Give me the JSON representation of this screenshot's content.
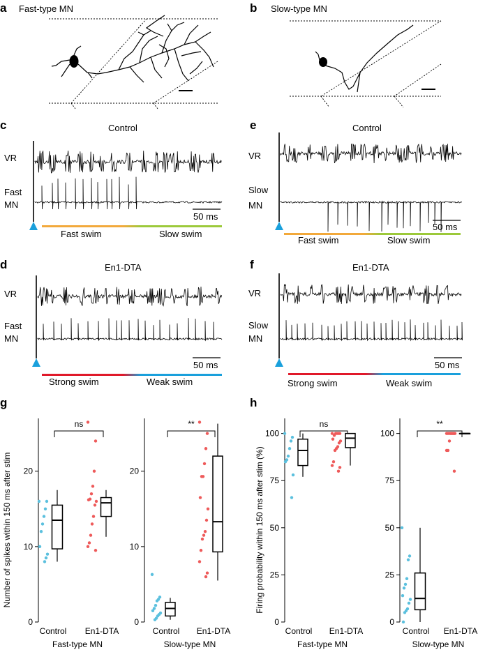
{
  "panels": {
    "a": {
      "letter": "a",
      "title": "Fast-type MN"
    },
    "b": {
      "letter": "b",
      "title": "Slow-type MN"
    },
    "c": {
      "letter": "c",
      "title": "Control",
      "vr": "VR",
      "mn1": "Fast",
      "mn2": "MN",
      "scale": "50 ms",
      "swim1": "Fast swim",
      "swim2": "Slow swim",
      "bar_colors": [
        "#f2a93b",
        "#9cc93a"
      ]
    },
    "e": {
      "letter": "e",
      "title": "Control",
      "vr": "VR",
      "mn1": "Slow",
      "mn2": "MN",
      "scale": "50 ms",
      "swim1": "Fast swim",
      "swim2": "Slow swim",
      "bar_colors": [
        "#f2a93b",
        "#9cc93a"
      ]
    },
    "d": {
      "letter": "d",
      "title": "En1-DTA",
      "vr": "VR",
      "mn1": "Fast",
      "mn2": "MN",
      "scale": "50 ms",
      "swim1": "Strong swim",
      "swim2": "Weak swim",
      "bar_colors": [
        "#e0192a",
        "#1aa0dc"
      ]
    },
    "f": {
      "letter": "f",
      "title": "En1-DTA",
      "vr": "VR",
      "mn1": "Slow",
      "mn2": "MN",
      "scale": "50 ms",
      "swim1": "Strong swim",
      "swim2": "Weak swim",
      "bar_colors": [
        "#e0192a",
        "#1aa0dc"
      ]
    },
    "g": {
      "letter": "g"
    },
    "h": {
      "letter": "h"
    }
  },
  "colors": {
    "control": "#5bc0de",
    "en1dta": "#ee5a5a",
    "stim": "#1aa0dc"
  },
  "chart_data": [
    {
      "id": "g-fast",
      "type": "box",
      "panel": "g",
      "ylabel": "Number of spikes within 150 ms after stim",
      "xlabel": "Fast-type MN",
      "categories": [
        "Control",
        "En1-DTA"
      ],
      "ylim": [
        0,
        27
      ],
      "yticks": [
        0,
        10,
        20
      ],
      "significance": "ns",
      "series": [
        {
          "name": "Control",
          "points": [
            16,
            16,
            15,
            14,
            13,
            12,
            10,
            9,
            8.5,
            8
          ],
          "box": {
            "min": 8,
            "q1": 9.7,
            "median": 13.5,
            "q3": 15.5,
            "max": 17.5
          }
        },
        {
          "name": "En1-DTA",
          "points": [
            26.5,
            24,
            20,
            18,
            17,
            16.3,
            16.2,
            16,
            15.5,
            14,
            13,
            11.5,
            10.5,
            10,
            9.5
          ],
          "box": {
            "min": 11.3,
            "q1": 14,
            "median": 15.8,
            "q3": 16.5,
            "max": 17.5
          }
        }
      ]
    },
    {
      "id": "g-slow",
      "type": "box",
      "panel": "g",
      "ylabel": "",
      "xlabel": "Slow-type MN",
      "categories": [
        "Control",
        "En1-DTA"
      ],
      "ylim": [
        0,
        27
      ],
      "yticks": [
        0,
        10,
        20
      ],
      "significance": "**",
      "series": [
        {
          "name": "Control",
          "points": [
            6.3,
            3.3,
            3,
            2.8,
            2.2,
            1.8,
            1.5,
            1.2,
            1,
            0.8,
            0.5,
            0.3
          ],
          "box": {
            "min": 0.3,
            "q1": 0.8,
            "median": 1.8,
            "q3": 2.6,
            "max": 3.2
          }
        },
        {
          "name": "En1-DTA",
          "points": [
            26.5,
            25,
            23,
            21,
            19.3,
            19.3,
            16.5,
            15,
            13.5,
            12,
            11.5,
            11,
            9.5,
            8,
            6.5,
            6
          ],
          "box": {
            "min": 5.5,
            "q1": 9.3,
            "median": 13.3,
            "q3": 22,
            "max": 26.3
          }
        }
      ]
    },
    {
      "id": "h-fast",
      "type": "box",
      "panel": "h",
      "ylabel": "Firing probability within 150 ms after stim (%)",
      "xlabel": "Fast-type MN",
      "categories": [
        "Control",
        "En1-DTA"
      ],
      "ylim": [
        0,
        108
      ],
      "yticks": [
        0,
        25,
        50,
        75,
        100
      ],
      "significance": "ns",
      "series": [
        {
          "name": "Control",
          "points": [
            100,
            98,
            96,
            92,
            88,
            86,
            85,
            78,
            66
          ],
          "box": {
            "min": 77,
            "q1": 83,
            "median": 91,
            "q3": 97,
            "max": 100
          }
        },
        {
          "name": "En1-DTA",
          "points": [
            100,
            100,
            100,
            100,
            100,
            99,
            97,
            96,
            95,
            93,
            92,
            91,
            85,
            83,
            82,
            80
          ],
          "box": {
            "min": 83,
            "q1": 92.5,
            "median": 97.5,
            "q3": 100,
            "max": 100
          }
        }
      ]
    },
    {
      "id": "h-slow",
      "type": "box",
      "panel": "h",
      "ylabel": "",
      "xlabel": "Slow-type MN",
      "categories": [
        "Control",
        "En1-DTA"
      ],
      "ylim": [
        0,
        108
      ],
      "yticks": [
        0,
        25,
        50,
        75,
        100
      ],
      "significance": "**",
      "series": [
        {
          "name": "Control",
          "points": [
            50,
            35,
            33,
            23,
            20,
            18,
            14,
            12,
            10,
            7,
            6,
            5,
            0
          ],
          "box": {
            "min": 0,
            "q1": 6.5,
            "median": 12.5,
            "q3": 26,
            "max": 50
          }
        },
        {
          "name": "En1-DTA",
          "points": [
            100,
            100,
            100,
            100,
            100,
            100,
            100,
            100,
            100,
            100,
            100,
            96,
            91,
            91,
            80
          ],
          "box": {
            "min": 100,
            "q1": 100,
            "median": 100,
            "q3": 100,
            "max": 100
          }
        }
      ]
    }
  ]
}
